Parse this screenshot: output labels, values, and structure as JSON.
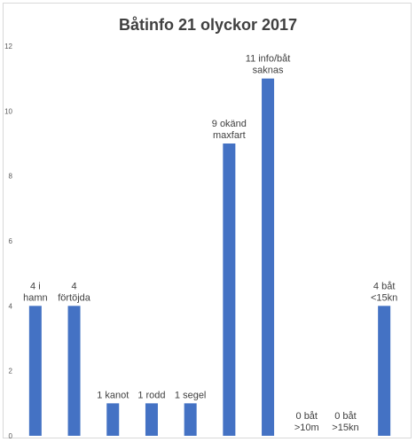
{
  "chart_data": {
    "type": "bar",
    "title": "Båtinfo 21 olyckor 2017",
    "xlabel": "",
    "ylabel": "",
    "ylim": [
      0,
      12
    ],
    "yticks": [
      0,
      2,
      4,
      6,
      8,
      10,
      12
    ],
    "grid": false,
    "bar_color": "#4472c4",
    "values": [
      4,
      4,
      1,
      1,
      1,
      9,
      11,
      0,
      0,
      4
    ],
    "data_labels": [
      [
        "4 i",
        "hamn"
      ],
      [
        "4",
        "förtöjda"
      ],
      [
        "1 kanot"
      ],
      [
        "1 rodd"
      ],
      [
        "1 segel"
      ],
      [
        "9 okänd",
        "maxfart"
      ],
      [
        "11 info/båt",
        "saknas"
      ],
      [
        "0 båt",
        ">10m"
      ],
      [
        "0 båt",
        ">15kn"
      ],
      [
        "4 båt",
        "<15kn"
      ]
    ]
  }
}
